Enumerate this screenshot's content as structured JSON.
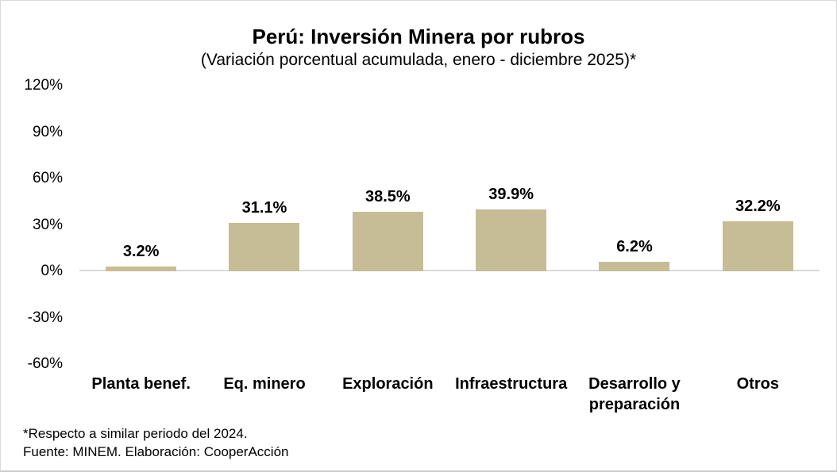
{
  "figure": {
    "title": "Perú: Inversión Minera por rubros",
    "subtitle": "(Variación porcentual acumulada, enero - diciembre 2025)*",
    "footnote": "*Respecto a similar periodo del 2024.",
    "source": "Fuente: MINEM. Elaboración: CooperAcción"
  },
  "chart_data": {
    "type": "bar",
    "title": "Perú: Inversión Minera por rubros",
    "subtitle": "(Variación porcentual acumulada, enero - diciembre 2025)*",
    "categories": [
      "Planta benef.",
      "Eq. minero",
      "Exploración",
      "Infraestructura",
      "Desarrollo y preparación",
      "Otros"
    ],
    "values": [
      3.2,
      31.1,
      38.5,
      39.9,
      6.2,
      32.2
    ],
    "value_labels": [
      "3.2%",
      "31.1%",
      "38.5%",
      "39.9%",
      "6.2%",
      "32.2%"
    ],
    "ylim": [
      -60,
      120
    ],
    "ytick_step": 30,
    "ytick_labels": [
      "120%",
      "90%",
      "60%",
      "30%",
      "0%",
      "-30%",
      "-60%"
    ],
    "xlabel": "",
    "ylabel": "",
    "grid": false,
    "legend": false,
    "bar_color": "#C6BD96",
    "axis_line_color": "#D9D9D9",
    "text_color": "#000000",
    "footnote": "*Respecto a similar periodo del 2024.",
    "source": "Fuente: MINEM. Elaboración: CooperAcción"
  }
}
